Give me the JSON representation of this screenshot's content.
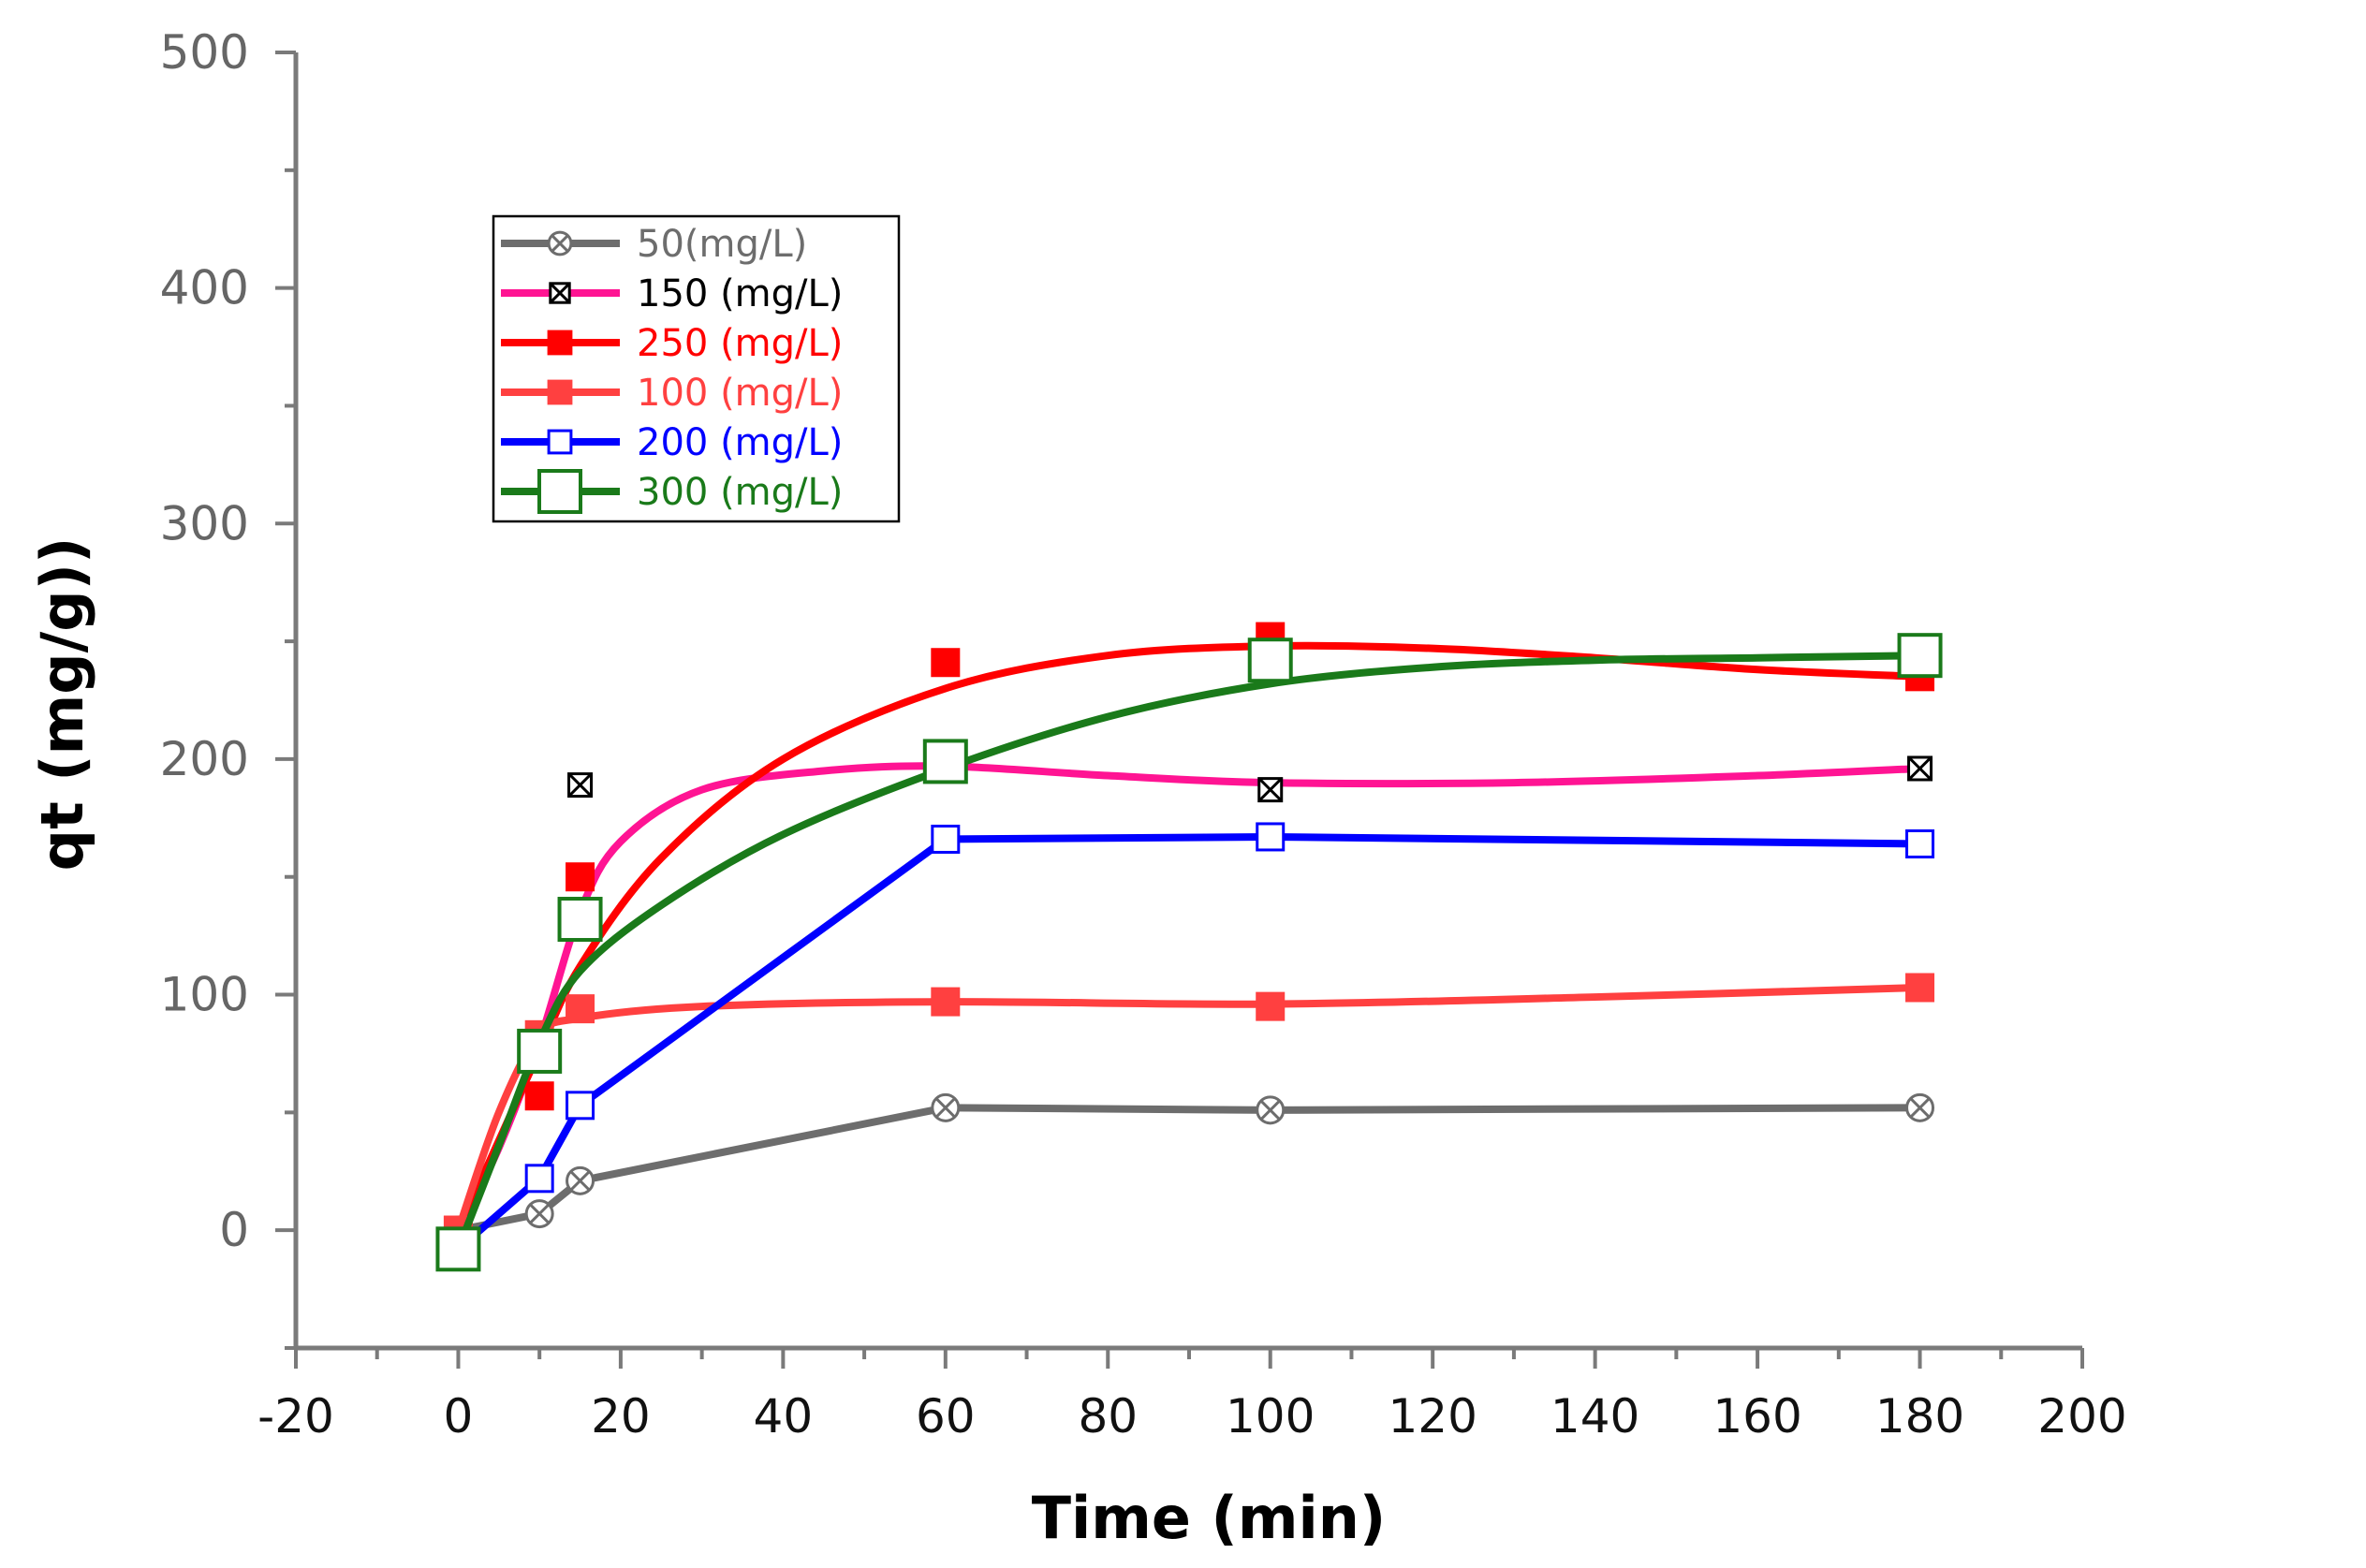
{
  "chart_data": {
    "type": "line",
    "title": "",
    "xlabel": "Time (min)",
    "ylabel": "qt (mg/g))",
    "xlim": [
      -20,
      200
    ],
    "ylim": [
      -50,
      500
    ],
    "x_ticks": [
      -20,
      0,
      20,
      40,
      60,
      80,
      100,
      120,
      140,
      160,
      180,
      200
    ],
    "y_ticks": [
      0,
      100,
      200,
      300,
      400,
      500
    ],
    "legend_position": "upper-left",
    "series": [
      {
        "name": "50(mg/L)",
        "color": "#6d6d6d",
        "marker": "circle-x",
        "marker_fill": "#ffffff",
        "curve": "linear",
        "x": [
          0,
          10,
          15,
          60,
          100,
          180
        ],
        "y": [
          0,
          7,
          21,
          52,
          51,
          52
        ]
      },
      {
        "name": "150 (mg/L)",
        "color": "#ff1493",
        "marker": "square-x",
        "marker_fill": "#ffffff",
        "curve": "fit",
        "x": [
          0,
          10,
          15,
          60,
          100,
          180
        ],
        "y": [
          0,
          80,
          189,
          198,
          187,
          196
        ],
        "fit": [
          [
            0,
            0
          ],
          [
            5,
            35
          ],
          [
            10,
            80
          ],
          [
            15,
            135
          ],
          [
            20,
            165
          ],
          [
            30,
            187
          ],
          [
            45,
            195
          ],
          [
            60,
            197
          ],
          [
            80,
            193
          ],
          [
            100,
            190
          ],
          [
            130,
            190
          ],
          [
            160,
            193
          ],
          [
            180,
            196
          ]
        ]
      },
      {
        "name": "250 (mg/L)",
        "color": "#ff0000",
        "marker": "square",
        "marker_fill": "#ff0000",
        "curve": "fit",
        "x": [
          0,
          10,
          15,
          60,
          100,
          180
        ],
        "y": [
          0,
          57,
          150,
          241,
          252,
          235
        ],
        "fit": [
          [
            0,
            0
          ],
          [
            5,
            38
          ],
          [
            10,
            76
          ],
          [
            15,
            112
          ],
          [
            25,
            158
          ],
          [
            40,
            200
          ],
          [
            60,
            230
          ],
          [
            80,
            244
          ],
          [
            100,
            248
          ],
          [
            120,
            247
          ],
          [
            140,
            243
          ],
          [
            160,
            238
          ],
          [
            180,
            235
          ]
        ]
      },
      {
        "name": "100 (mg/L)",
        "color": "#ff4040",
        "marker": "square",
        "marker_fill": "#ff4040",
        "curve": "fit",
        "x": [
          0,
          10,
          15,
          60,
          100,
          180
        ],
        "y": [
          0,
          83,
          94,
          97,
          95,
          103
        ],
        "fit": [
          [
            0,
            0
          ],
          [
            5,
            50
          ],
          [
            10,
            83
          ],
          [
            15,
            90
          ],
          [
            30,
            95
          ],
          [
            60,
            97
          ],
          [
            100,
            96
          ],
          [
            140,
            99
          ],
          [
            180,
            103
          ]
        ]
      },
      {
        "name": "200 (mg/L)",
        "color": "#0000ff",
        "marker": "square",
        "marker_fill": "#ffffff",
        "curve": "linear",
        "x": [
          0,
          10,
          15,
          60,
          100,
          180
        ],
        "y": [
          -8,
          22,
          53,
          166,
          167,
          164
        ]
      },
      {
        "name": "300 (mg/L)",
        "color": "#1a7a1a",
        "marker": "square-large",
        "marker_fill": "#ffffff",
        "curve": "fit",
        "x": [
          0,
          10,
          15,
          60,
          100,
          180
        ],
        "y": [
          -8,
          76,
          132,
          199,
          242,
          244
        ],
        "fit": [
          [
            0,
            -8
          ],
          [
            5,
            36
          ],
          [
            10,
            80
          ],
          [
            15,
            110
          ],
          [
            25,
            138
          ],
          [
            40,
            168
          ],
          [
            60,
            196
          ],
          [
            80,
            218
          ],
          [
            100,
            232
          ],
          [
            120,
            239
          ],
          [
            140,
            242
          ],
          [
            160,
            243
          ],
          [
            180,
            244
          ]
        ]
      }
    ]
  }
}
